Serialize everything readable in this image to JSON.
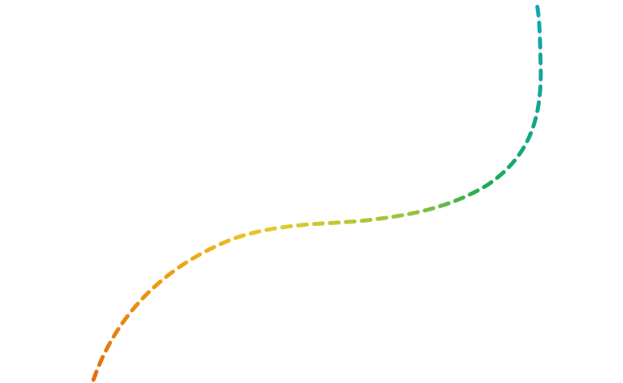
{
  "decoration": {
    "curve_style": "dashed",
    "gradient_colors": [
      "#e36f0f",
      "#ef9b11",
      "#e7ca2c",
      "#92c43e",
      "#1fab4f",
      "#12a687",
      "#13a6b5"
    ]
  }
}
